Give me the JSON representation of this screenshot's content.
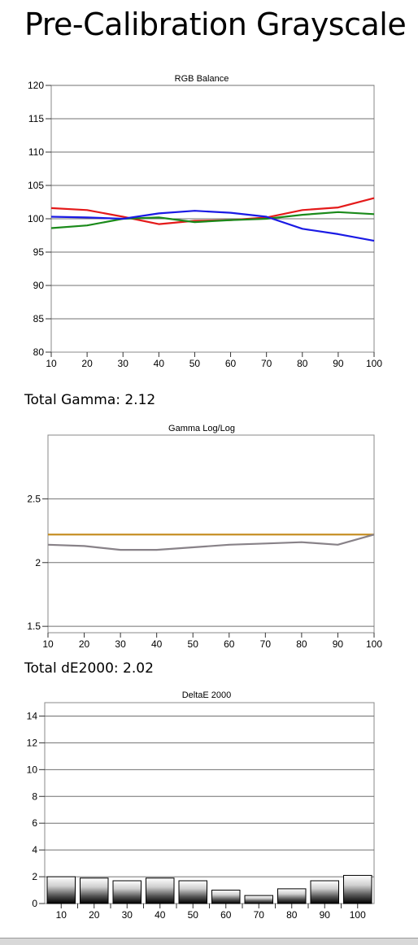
{
  "page": {
    "title": "Pre-Calibration Grayscale",
    "gamma_summary": "Total Gamma: 2.12",
    "de_summary": "Total dE2000: 2.02"
  },
  "chart_data": [
    {
      "type": "line",
      "title": "RGB Balance",
      "x": [
        10,
        20,
        30,
        40,
        50,
        60,
        70,
        80,
        90,
        100
      ],
      "xticks": [
        "10",
        "20",
        "30",
        "40",
        "50",
        "60",
        "70",
        "80",
        "90",
        "100"
      ],
      "ylim": [
        80,
        120
      ],
      "yticks": [
        "80",
        "85",
        "90",
        "95",
        "100",
        "105",
        "110",
        "115",
        "120"
      ],
      "grid": true,
      "series": [
        {
          "color": "#e41a1a",
          "values": [
            101.6,
            101.3,
            100.3,
            99.2,
            99.7,
            99.8,
            100.2,
            101.3,
            101.7,
            103.1
          ]
        },
        {
          "color": "#1a8a1a",
          "values": [
            98.6,
            99.0,
            100.0,
            100.2,
            99.5,
            99.8,
            100.0,
            100.6,
            101.0,
            100.7
          ]
        },
        {
          "color": "#1a1ae4",
          "values": [
            100.3,
            100.2,
            100.0,
            100.8,
            101.2,
            100.9,
            100.3,
            98.5,
            97.7,
            96.7
          ]
        }
      ]
    },
    {
      "type": "line",
      "title": "Gamma Log/Log",
      "x": [
        10,
        20,
        30,
        40,
        50,
        60,
        70,
        80,
        90,
        100
      ],
      "xticks": [
        "10",
        "20",
        "30",
        "40",
        "50",
        "60",
        "70",
        "80",
        "90",
        "100"
      ],
      "ylim": [
        1.45,
        3.0
      ],
      "yticks": [
        "1.5",
        "2",
        "2.5"
      ],
      "ytick_values": [
        1.5,
        2,
        2.5
      ],
      "grid": true,
      "series": [
        {
          "color": "#c38a1a",
          "values": [
            2.22,
            2.22,
            2.22,
            2.22,
            2.22,
            2.22,
            2.22,
            2.22,
            2.22,
            2.22
          ]
        },
        {
          "color": "#888288",
          "values": [
            2.14,
            2.13,
            2.1,
            2.1,
            2.12,
            2.14,
            2.15,
            2.16,
            2.14,
            2.22
          ]
        }
      ]
    },
    {
      "type": "bar",
      "title": "DeltaE 2000",
      "categories": [
        "10",
        "20",
        "30",
        "40",
        "50",
        "60",
        "70",
        "80",
        "90",
        "100"
      ],
      "values": [
        2.0,
        1.9,
        1.7,
        1.9,
        1.7,
        1.0,
        0.6,
        1.1,
        1.7,
        2.1
      ],
      "ylim": [
        0,
        15
      ],
      "yticks": [
        "0",
        "2",
        "4",
        "6",
        "8",
        "10",
        "12",
        "14"
      ],
      "ytick_values": [
        0,
        2,
        4,
        6,
        8,
        10,
        12,
        14
      ],
      "grid": true
    }
  ]
}
